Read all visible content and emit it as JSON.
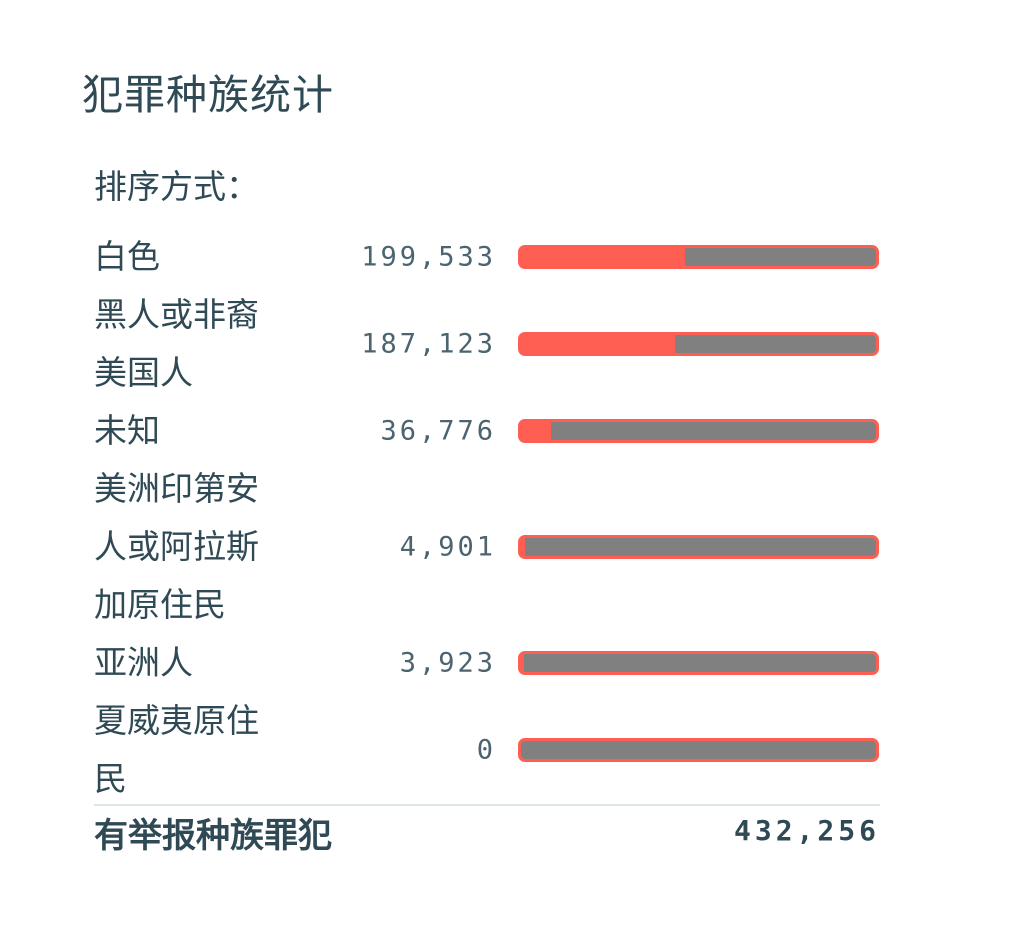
{
  "title": "犯罪种族统计",
  "sort_label": "排序方式：",
  "colors": {
    "bar_fill": "#ff5f52",
    "bar_track": "#808080",
    "text": "#2f4a55"
  },
  "chart_data": {
    "type": "bar",
    "orientation": "horizontal",
    "title": "犯罪种族统计",
    "categories": [
      "白色",
      "黑人或非裔美国人",
      "未知",
      "美洲印第安人或阿拉斯加原住民",
      "亚洲人",
      "夏威夷原住民"
    ],
    "values": [
      199533,
      187123,
      36776,
      4901,
      3923,
      0
    ],
    "value_labels": [
      "199,533",
      "187,123",
      "36,776",
      "4,901",
      "3,923",
      "0"
    ],
    "total_label": "有举报种族罪犯",
    "total": 432256,
    "total_display": "432,256"
  }
}
